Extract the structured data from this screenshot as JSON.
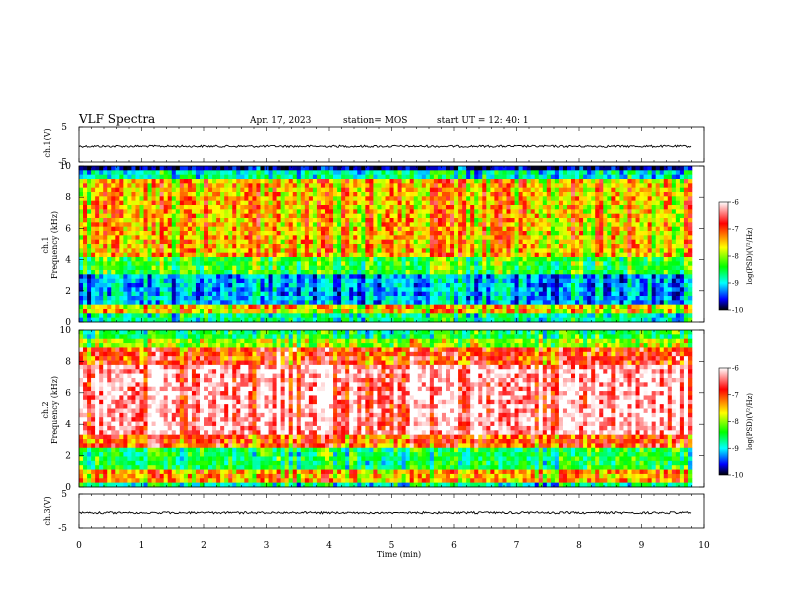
{
  "header": {
    "title": "VLF Spectra",
    "date": "Apr. 17, 2023",
    "station": "station= MOS",
    "start_ut": "start  UT  =   12: 40: 1"
  },
  "chart_data": {
    "type": "heatmap",
    "x": {
      "label": "Time  (min)",
      "range": [
        0,
        10
      ],
      "ticks": [
        "0",
        "1",
        "2",
        "3",
        "4",
        "5",
        "6",
        "7",
        "8",
        "9",
        "10"
      ]
    },
    "panels": [
      {
        "id": "ch1_wave",
        "kind": "line",
        "ylabel": "ch.1(V)",
        "ylim": [
          -5,
          5
        ],
        "tick_labels": [
          "5",
          "-5"
        ]
      },
      {
        "id": "ch1_spec",
        "kind": "spectrogram",
        "ylabel_top": "ch.1",
        "ylabel": "Frequency  (kHz)",
        "ylim": [
          0,
          10
        ],
        "tick_labels": [
          "0",
          "2",
          "4",
          "6",
          "8",
          "10"
        ],
        "colorbar": {
          "label": "log(PSD)(V²/Hz)",
          "range": [
            -10,
            -6
          ],
          "tick_labels": [
            "-6",
            "-7",
            "-8",
            "-9",
            "-10"
          ]
        }
      },
      {
        "id": "ch2_spec",
        "kind": "spectrogram",
        "ylabel_top": "ch.2",
        "ylabel": "Frequency  (kHz)",
        "ylim": [
          0,
          10
        ],
        "tick_labels": [
          "0",
          "2",
          "4",
          "6",
          "8",
          "10"
        ],
        "colorbar": {
          "label": "log(PSD)(V²/Hz)",
          "range": [
            -10,
            -6
          ],
          "tick_labels": [
            "-6",
            "-7",
            "-8",
            "-9",
            "-10"
          ]
        }
      },
      {
        "id": "ch3_wave",
        "kind": "line",
        "ylabel": "ch.3(V)",
        "ylim": [
          -5,
          5
        ],
        "tick_labels": [
          "5",
          "-5"
        ]
      }
    ],
    "colormap": [
      "#ffffff",
      "#ff0000",
      "#ffff00",
      "#00ff00",
      "#00ffff",
      "#0000ff",
      "#000000"
    ]
  }
}
